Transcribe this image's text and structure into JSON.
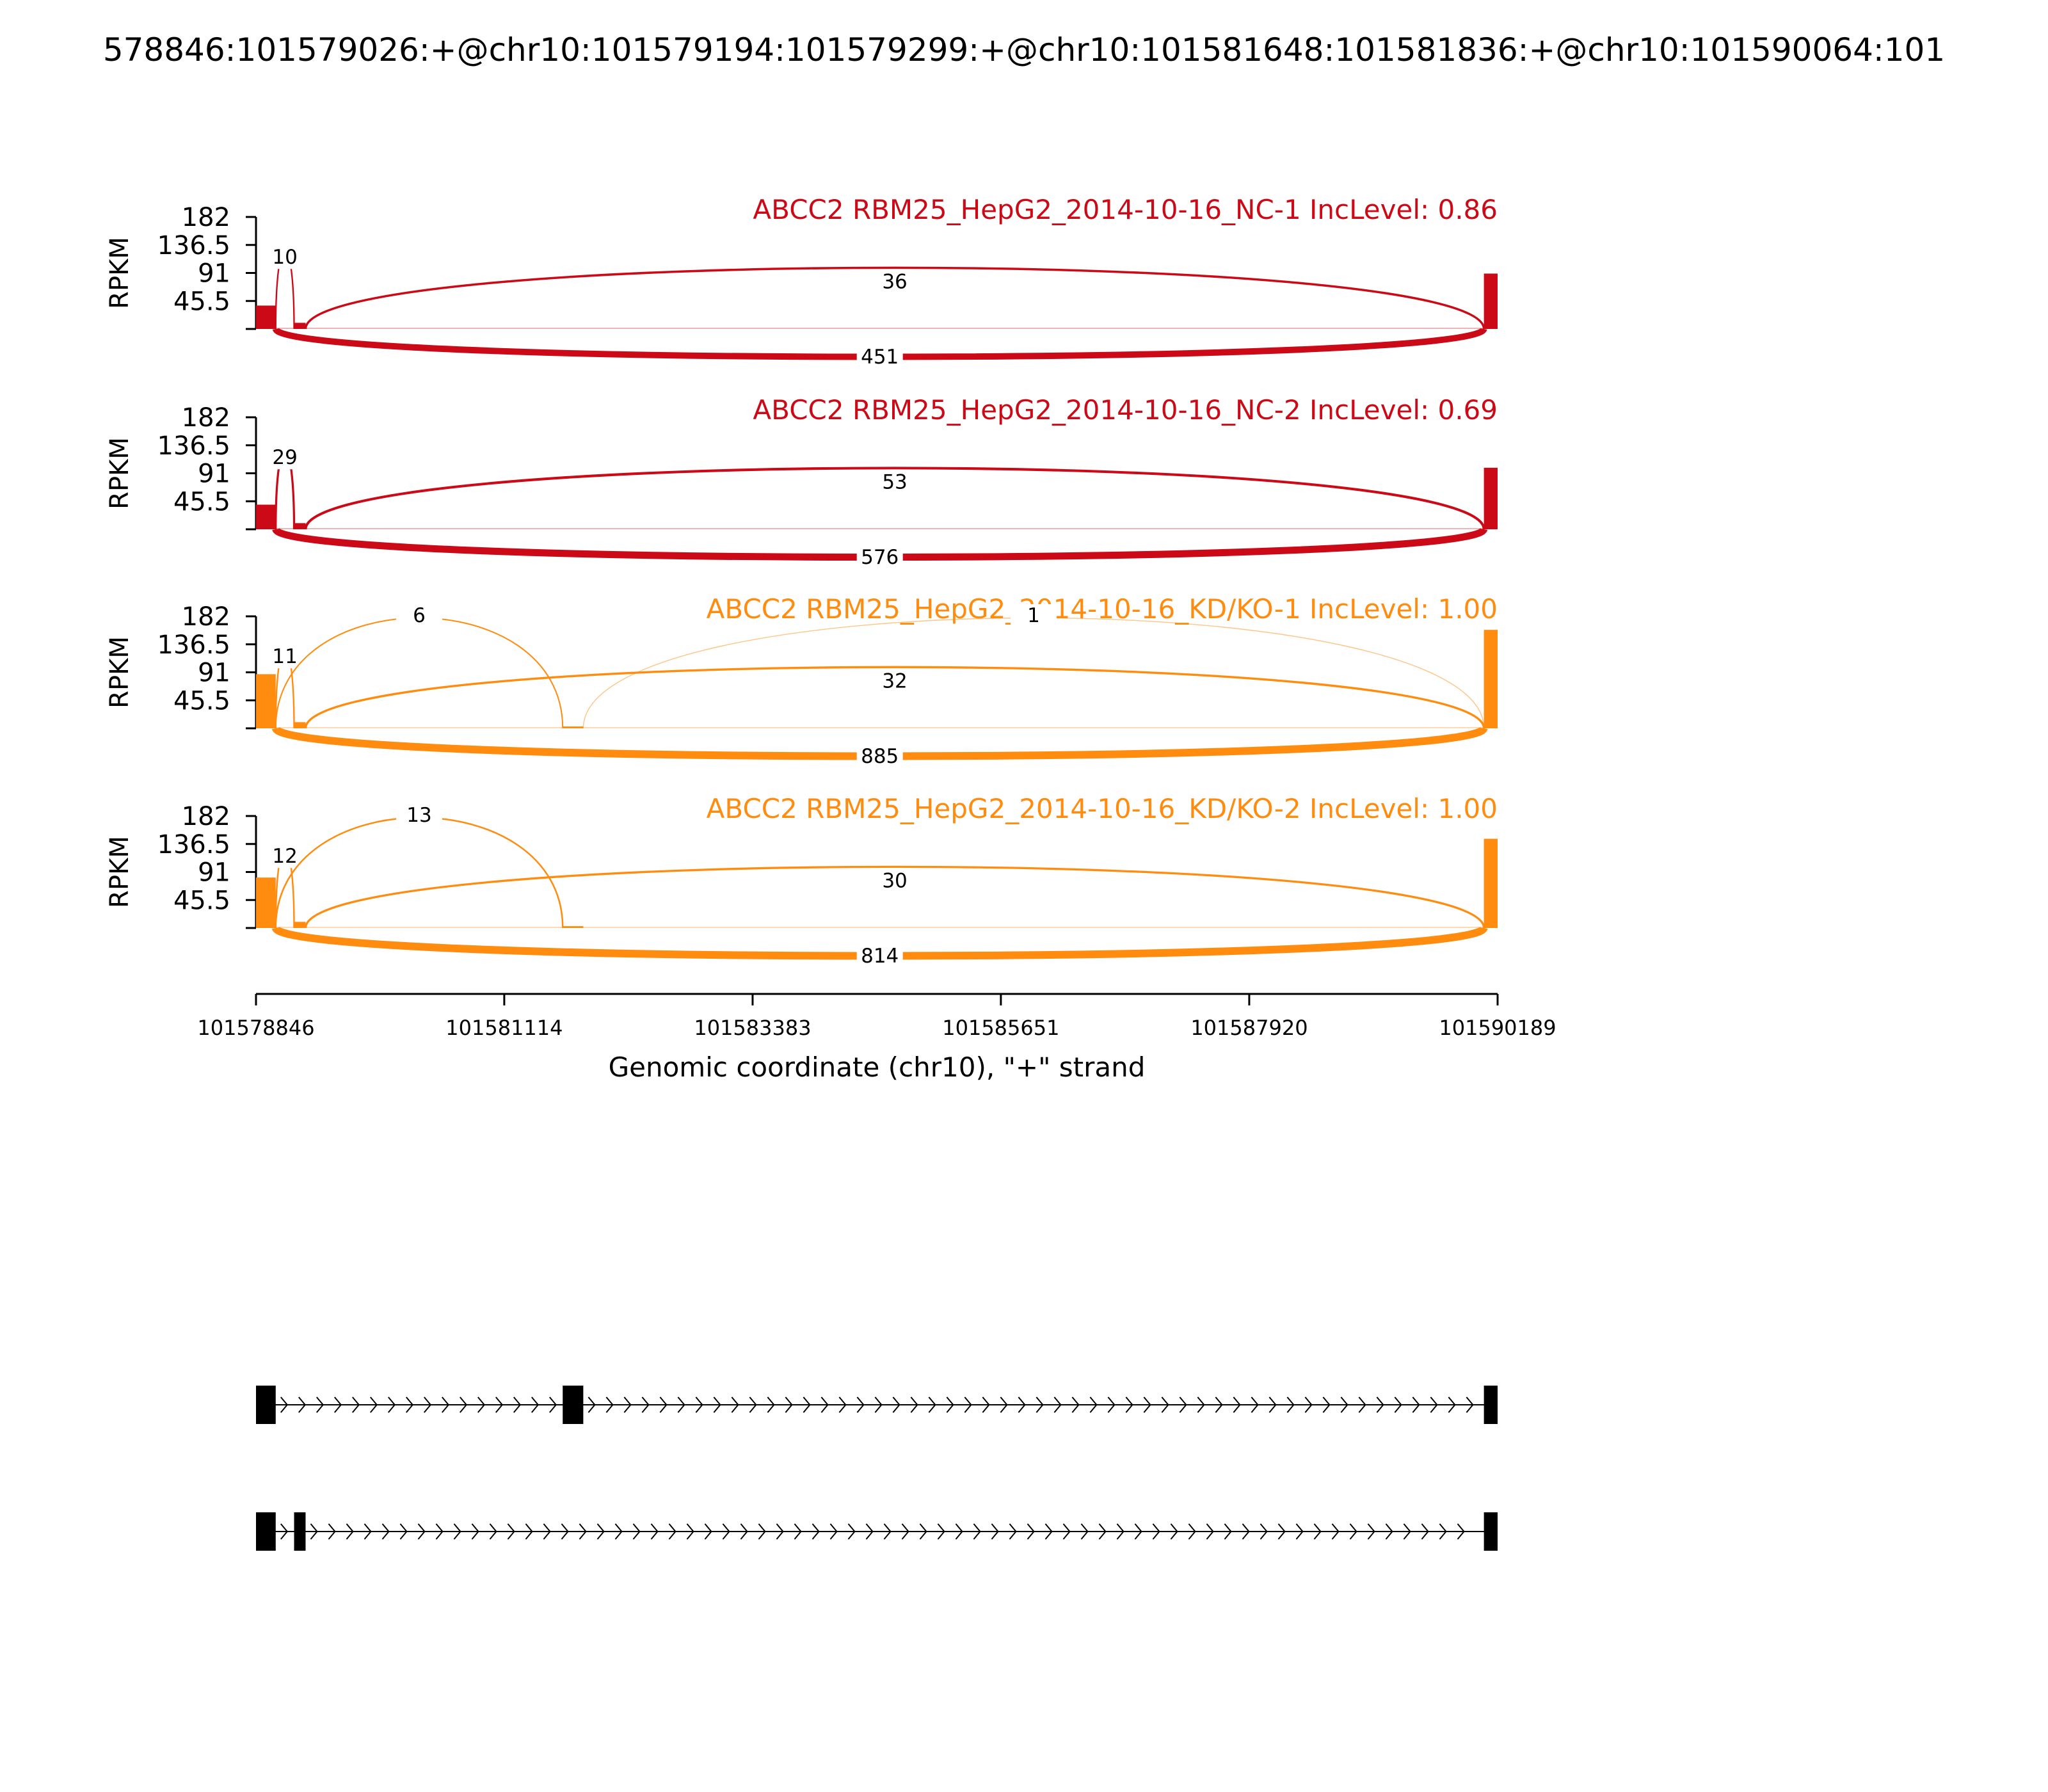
{
  "title": "578846:101579026:+@chr10:101579194:101579299:+@chr10:101581648:101581836:+@chr10:101590064:101",
  "colors": {
    "nc": "#cc0a17",
    "kd": "#ff8c0f"
  },
  "chart_data": {
    "type": "sashimi",
    "ylabel": "RPKM",
    "yticks": [
      "182",
      "136.5",
      "91",
      "45.5"
    ],
    "ylim": [
      0,
      182
    ],
    "xlabel": "Genomic coordinate (chr10), \"+\" strand",
    "xlim": [
      101578846,
      101590189
    ],
    "xticks": [
      "101578846",
      "101581114",
      "101583383",
      "101585651",
      "101587920",
      "101590189"
    ],
    "tracks": [
      {
        "label": "ABCC2 RBM25_HepG2_2014-10-16_NC-1 IncLevel: 0.86",
        "color": "nc",
        "coverage": [
          {
            "start": 101578846,
            "end": 101579026,
            "rpkm": 38
          },
          {
            "start": 101579194,
            "end": 101579299,
            "rpkm": 10
          },
          {
            "start": 101590064,
            "end": 101590189,
            "rpkm": 90
          }
        ],
        "junctions": [
          {
            "from": 101579026,
            "to": 101579194,
            "count": "10",
            "above": true
          },
          {
            "from": 101579299,
            "to": 101590064,
            "count": "36",
            "above": true
          },
          {
            "from": 101579026,
            "to": 101590064,
            "count": "451",
            "above": false
          }
        ]
      },
      {
        "label": "ABCC2 RBM25_HepG2_2014-10-16_NC-2 IncLevel: 0.69",
        "color": "nc",
        "coverage": [
          {
            "start": 101578846,
            "end": 101579026,
            "rpkm": 40
          },
          {
            "start": 101579194,
            "end": 101579299,
            "rpkm": 10
          },
          {
            "start": 101590064,
            "end": 101590189,
            "rpkm": 100
          }
        ],
        "junctions": [
          {
            "from": 101579026,
            "to": 101579194,
            "count": "29",
            "above": true
          },
          {
            "from": 101579299,
            "to": 101590064,
            "count": "53",
            "above": true
          },
          {
            "from": 101579026,
            "to": 101590064,
            "count": "576",
            "above": false
          }
        ]
      },
      {
        "label": "ABCC2 RBM25_HepG2_2014-10-16_KD/KO-1 IncLevel: 1.00",
        "color": "kd",
        "coverage": [
          {
            "start": 101578846,
            "end": 101579026,
            "rpkm": 88
          },
          {
            "start": 101579194,
            "end": 101579299,
            "rpkm": 10
          },
          {
            "start": 101581648,
            "end": 101581836,
            "rpkm": 3
          },
          {
            "start": 101590064,
            "end": 101590189,
            "rpkm": 160
          }
        ],
        "junctions": [
          {
            "from": 101579026,
            "to": 101579194,
            "count": "11",
            "above": true
          },
          {
            "from": 101579026,
            "to": 101581648,
            "count": "6",
            "above": true
          },
          {
            "from": 101579299,
            "to": 101590064,
            "count": "32",
            "above": true
          },
          {
            "from": 101581836,
            "to": 101590064,
            "count": "1",
            "above": true
          },
          {
            "from": 101579026,
            "to": 101590064,
            "count": "885",
            "above": false
          }
        ]
      },
      {
        "label": "ABCC2 RBM25_HepG2_2014-10-16_KD/KO-2 IncLevel: 1.00",
        "color": "kd",
        "coverage": [
          {
            "start": 101578846,
            "end": 101579026,
            "rpkm": 82
          },
          {
            "start": 101579194,
            "end": 101579299,
            "rpkm": 10
          },
          {
            "start": 101581648,
            "end": 101581836,
            "rpkm": 3
          },
          {
            "start": 101590064,
            "end": 101590189,
            "rpkm": 145
          }
        ],
        "junctions": [
          {
            "from": 101579026,
            "to": 101579194,
            "count": "12",
            "above": true
          },
          {
            "from": 101579026,
            "to": 101581648,
            "count": "13",
            "above": true
          },
          {
            "from": 101579299,
            "to": 101590064,
            "count": "30",
            "above": true
          },
          {
            "from": 101579026,
            "to": 101590064,
            "count": "814",
            "above": false
          }
        ]
      }
    ],
    "isoforms": [
      {
        "exons": [
          [
            101578846,
            101579026
          ],
          [
            101581648,
            101581836
          ],
          [
            101590064,
            101590189
          ]
        ]
      },
      {
        "exons": [
          [
            101578846,
            101579026
          ],
          [
            101579194,
            101579299
          ],
          [
            101590064,
            101590189
          ]
        ]
      }
    ]
  }
}
